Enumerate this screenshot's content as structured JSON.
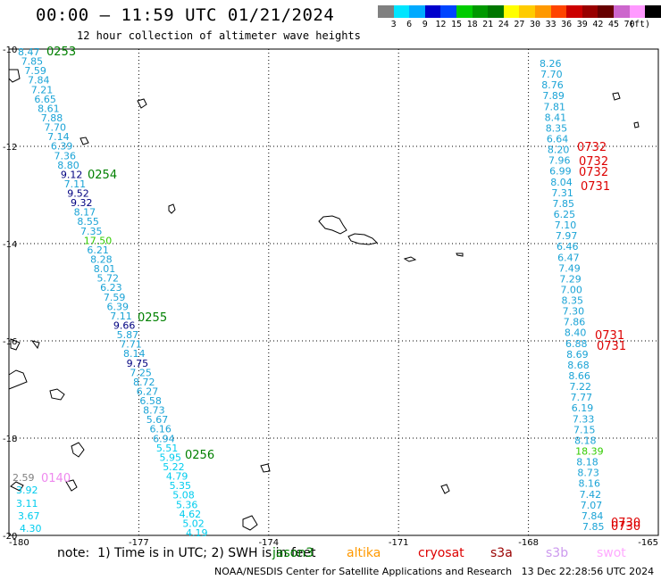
{
  "header": {
    "title": "00:00 – 11:59 UTC 01/21/2024",
    "subtitle": "12 hour collection of altimeter wave heights"
  },
  "legend": {
    "colors": [
      "#808080",
      "#00e5ff",
      "#00aaff",
      "#0000cc",
      "#0044ff",
      "#00cc00",
      "#009900",
      "#007700",
      "#ffff00",
      "#ffcc00",
      "#ff9900",
      "#ff4400",
      "#cc0000",
      "#990000",
      "#660000",
      "#cc66cc",
      "#ff99ff",
      "#000000"
    ],
    "labels": [
      "3",
      "6",
      "9",
      "12",
      "15",
      "18",
      "21",
      "24",
      "27",
      "30",
      "33",
      "36",
      "39",
      "42",
      "45",
      "70"
    ],
    "units": "(ft)"
  },
  "axes": {
    "x_ticks": [
      "-180",
      "-177",
      "-174",
      "-171",
      "-168",
      "-165"
    ],
    "y_ticks": [
      "-10",
      "-12",
      "-14",
      "-16",
      "-18",
      "-20"
    ]
  },
  "track_west": {
    "times": [
      {
        "label": "0253",
        "color": "#008000"
      },
      {
        "label": "0254",
        "color": "#008000"
      },
      {
        "label": "0255",
        "color": "#008000"
      },
      {
        "label": "0256",
        "color": "#008000"
      }
    ],
    "values": [
      {
        "v": "8.47",
        "c": "#1aa3d6"
      },
      {
        "v": "7.85",
        "c": "#1aa3d6"
      },
      {
        "v": "7.59",
        "c": "#1aa3d6"
      },
      {
        "v": "7.84",
        "c": "#1aa3d6"
      },
      {
        "v": "7.21",
        "c": "#1aa3d6"
      },
      {
        "v": "6.65",
        "c": "#1aa3d6"
      },
      {
        "v": "8.61",
        "c": "#1aa3d6"
      },
      {
        "v": "7.88",
        "c": "#1aa3d6"
      },
      {
        "v": "7.70",
        "c": "#1aa3d6"
      },
      {
        "v": "7.14",
        "c": "#1aa3d6"
      },
      {
        "v": "6.39",
        "c": "#1aa3d6"
      },
      {
        "v": "7.36",
        "c": "#1aa3d6"
      },
      {
        "v": "8.80",
        "c": "#1aa3d6"
      },
      {
        "v": "9.12",
        "c": "#000080"
      },
      {
        "v": "7.11",
        "c": "#1aa3d6"
      },
      {
        "v": "9.52",
        "c": "#000080"
      },
      {
        "v": "9.32",
        "c": "#000080"
      },
      {
        "v": "8.17",
        "c": "#1aa3d6"
      },
      {
        "v": "8.55",
        "c": "#1aa3d6"
      },
      {
        "v": "7.35",
        "c": "#1aa3d6"
      },
      {
        "v": "17.50",
        "c": "#33cc00"
      },
      {
        "v": "6.21",
        "c": "#1aa3d6"
      },
      {
        "v": "8.28",
        "c": "#1aa3d6"
      },
      {
        "v": "8.01",
        "c": "#1aa3d6"
      },
      {
        "v": "5.72",
        "c": "#1aa3d6"
      },
      {
        "v": "6.23",
        "c": "#1aa3d6"
      },
      {
        "v": "7.59",
        "c": "#1aa3d6"
      },
      {
        "v": "6.39",
        "c": "#1aa3d6"
      },
      {
        "v": "7.11",
        "c": "#1aa3d6"
      },
      {
        "v": "9.66",
        "c": "#000080"
      },
      {
        "v": "5.87",
        "c": "#1aa3d6"
      },
      {
        "v": "7.71",
        "c": "#1aa3d6"
      },
      {
        "v": "8.14",
        "c": "#1aa3d6"
      },
      {
        "v": "9.75",
        "c": "#000080"
      },
      {
        "v": "7.25",
        "c": "#1aa3d6"
      },
      {
        "v": "8.72",
        "c": "#1aa3d6"
      },
      {
        "v": "6.27",
        "c": "#1aa3d6"
      },
      {
        "v": "6.58",
        "c": "#1aa3d6"
      },
      {
        "v": "8.73",
        "c": "#1aa3d6"
      },
      {
        "v": "5.67",
        "c": "#1aa3d6"
      },
      {
        "v": "6.16",
        "c": "#1aa3d6"
      },
      {
        "v": "6.94",
        "c": "#1aa3d6"
      },
      {
        "v": "5.51",
        "c": "#00ccee"
      },
      {
        "v": "5.95",
        "c": "#00ccee"
      },
      {
        "v": "5.22",
        "c": "#00ccee"
      },
      {
        "v": "4.79",
        "c": "#00ccee"
      },
      {
        "v": "5.35",
        "c": "#00ccee"
      },
      {
        "v": "5.08",
        "c": "#00ccee"
      },
      {
        "v": "5.36",
        "c": "#00ccee"
      },
      {
        "v": "4.62",
        "c": "#00ccee"
      },
      {
        "v": "5.02",
        "c": "#00ccee"
      },
      {
        "v": "4.19",
        "c": "#00ccee"
      }
    ]
  },
  "track_sw": {
    "time": {
      "label": "0140",
      "color": "#ee88ee"
    },
    "values": [
      {
        "v": "2.59",
        "c": "#808080"
      },
      {
        "v": "3.92",
        "c": "#00ccee"
      },
      {
        "v": "3.11",
        "c": "#00ccee"
      },
      {
        "v": "3.67",
        "c": "#00ccee"
      },
      {
        "v": "4.30",
        "c": "#00ccee"
      }
    ]
  },
  "track_east": {
    "times": [
      {
        "label": "0732",
        "color": "#dd0000"
      },
      {
        "label": "0732",
        "color": "#dd0000"
      },
      {
        "label": "0732",
        "color": "#dd0000"
      },
      {
        "label": "0731",
        "color": "#dd0000"
      },
      {
        "label": "0731",
        "color": "#dd0000"
      },
      {
        "label": "0731",
        "color": "#dd0000"
      },
      {
        "label": "0730",
        "color": "#dd0000"
      },
      {
        "label": "0730",
        "color": "#dd0000"
      }
    ],
    "values": [
      {
        "v": "8.26",
        "c": "#1aa3d6"
      },
      {
        "v": "7.70",
        "c": "#1aa3d6"
      },
      {
        "v": "8.76",
        "c": "#1aa3d6"
      },
      {
        "v": "7.89",
        "c": "#1aa3d6"
      },
      {
        "v": "7.81",
        "c": "#1aa3d6"
      },
      {
        "v": "8.41",
        "c": "#1aa3d6"
      },
      {
        "v": "8.35",
        "c": "#1aa3d6"
      },
      {
        "v": "6.64",
        "c": "#1aa3d6"
      },
      {
        "v": "8.20",
        "c": "#1aa3d6"
      },
      {
        "v": "7.96",
        "c": "#1aa3d6"
      },
      {
        "v": "6.99",
        "c": "#1aa3d6"
      },
      {
        "v": "8.04",
        "c": "#1aa3d6"
      },
      {
        "v": "7.31",
        "c": "#1aa3d6"
      },
      {
        "v": "7.85",
        "c": "#1aa3d6"
      },
      {
        "v": "6.25",
        "c": "#1aa3d6"
      },
      {
        "v": "7.10",
        "c": "#1aa3d6"
      },
      {
        "v": "7.97",
        "c": "#1aa3d6"
      },
      {
        "v": "6.46",
        "c": "#1aa3d6"
      },
      {
        "v": "6.47",
        "c": "#1aa3d6"
      },
      {
        "v": "7.49",
        "c": "#1aa3d6"
      },
      {
        "v": "7.29",
        "c": "#1aa3d6"
      },
      {
        "v": "7.00",
        "c": "#1aa3d6"
      },
      {
        "v": "8.35",
        "c": "#1aa3d6"
      },
      {
        "v": "7.30",
        "c": "#1aa3d6"
      },
      {
        "v": "7.86",
        "c": "#1aa3d6"
      },
      {
        "v": "8.40",
        "c": "#1aa3d6"
      },
      {
        "v": "6.88",
        "c": "#1aa3d6"
      },
      {
        "v": "8.69",
        "c": "#1aa3d6"
      },
      {
        "v": "8.68",
        "c": "#1aa3d6"
      },
      {
        "v": "8.66",
        "c": "#1aa3d6"
      },
      {
        "v": "7.22",
        "c": "#1aa3d6"
      },
      {
        "v": "7.77",
        "c": "#1aa3d6"
      },
      {
        "v": "6.19",
        "c": "#1aa3d6"
      },
      {
        "v": "7.33",
        "c": "#1aa3d6"
      },
      {
        "v": "7.15",
        "c": "#1aa3d6"
      },
      {
        "v": "8.18",
        "c": "#1aa3d6"
      },
      {
        "v": "18.39",
        "c": "#33cc00"
      },
      {
        "v": "8.18",
        "c": "#1aa3d6"
      },
      {
        "v": "8.73",
        "c": "#1aa3d6"
      },
      {
        "v": "8.16",
        "c": "#1aa3d6"
      },
      {
        "v": "7.42",
        "c": "#1aa3d6"
      },
      {
        "v": "7.07",
        "c": "#1aa3d6"
      },
      {
        "v": "7.84",
        "c": "#1aa3d6"
      },
      {
        "v": "7.85",
        "c": "#1aa3d6"
      }
    ]
  },
  "footer": {
    "note": "note:  1) Time is in UTC; 2) SWH is in feet",
    "satellites": [
      {
        "name": "jason3",
        "color": "#008000"
      },
      {
        "name": "altika",
        "color": "#ff9900"
      },
      {
        "name": "cryosat",
        "color": "#dd0000"
      },
      {
        "name": "s3a",
        "color": "#990000"
      },
      {
        "name": "s3b",
        "color": "#cc99ee"
      },
      {
        "name": "swot",
        "color": "#ffaaff"
      }
    ],
    "credit": "NOAA/NESDIS Center for Satellite Applications and Research   13 Dec 22:28:56 UTC 2024"
  }
}
